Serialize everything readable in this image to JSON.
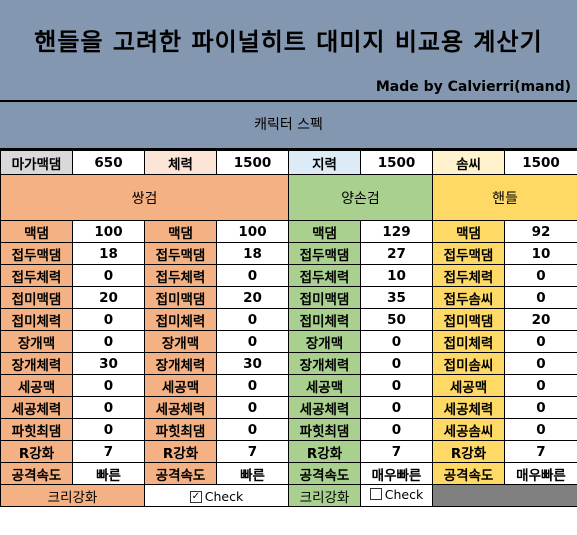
{
  "banner": {
    "title": "핸들을 고려한 파이널히트 대미지 비교용 계산기",
    "credit": "Made by Calvierri(mand)"
  },
  "spec_title": "캐릭터 스펙",
  "stats": [
    {
      "label": "마가맥댐",
      "value": "650"
    },
    {
      "label": "체력",
      "value": "1500"
    },
    {
      "label": "지력",
      "value": "1500"
    },
    {
      "label": "솜씨",
      "value": "1500"
    }
  ],
  "groups": {
    "dual": "쌍검",
    "two_hand": "양손검",
    "handle": "핸들"
  },
  "rows": [
    {
      "a_label": "맥댐",
      "a_val": "100",
      "b_label": "맥댐",
      "b_val": "100",
      "c_label": "맥댐",
      "c_val": "129",
      "d_label": "맥댐",
      "d_val": "92"
    },
    {
      "a_label": "접두맥댐",
      "a_val": "18",
      "b_label": "접두맥댐",
      "b_val": "18",
      "c_label": "접두맥댐",
      "c_val": "27",
      "d_label": "접두맥댐",
      "d_val": "10"
    },
    {
      "a_label": "접두체력",
      "a_val": "0",
      "b_label": "접두체력",
      "b_val": "0",
      "c_label": "접두체력",
      "c_val": "10",
      "d_label": "접두체력",
      "d_val": "0"
    },
    {
      "a_label": "접미맥댐",
      "a_val": "20",
      "b_label": "접미맥댐",
      "b_val": "20",
      "c_label": "접미맥댐",
      "c_val": "35",
      "d_label": "접두솜씨",
      "d_val": "0"
    },
    {
      "a_label": "접미체력",
      "a_val": "0",
      "b_label": "접미체력",
      "b_val": "0",
      "c_label": "접미체력",
      "c_val": "50",
      "d_label": "접미맥댐",
      "d_val": "20"
    },
    {
      "a_label": "장개맥",
      "a_val": "0",
      "b_label": "장개맥",
      "b_val": "0",
      "c_label": "장개맥",
      "c_val": "0",
      "d_label": "접미체력",
      "d_val": "0"
    },
    {
      "a_label": "장개체력",
      "a_val": "30",
      "b_label": "장개체력",
      "b_val": "30",
      "c_label": "장개체력",
      "c_val": "0",
      "d_label": "접미솜씨",
      "d_val": "0"
    },
    {
      "a_label": "세공맥",
      "a_val": "0",
      "b_label": "세공맥",
      "b_val": "0",
      "c_label": "세공맥",
      "c_val": "0",
      "d_label": "세공맥",
      "d_val": "0"
    },
    {
      "a_label": "세공체력",
      "a_val": "0",
      "b_label": "세공체력",
      "b_val": "0",
      "c_label": "세공체력",
      "c_val": "0",
      "d_label": "세공체력",
      "d_val": "0"
    },
    {
      "a_label": "파힛최댐",
      "a_val": "0",
      "b_label": "파힛최댐",
      "b_val": "0",
      "c_label": "파힛최댐",
      "c_val": "0",
      "d_label": "세공솜씨",
      "d_val": "0"
    },
    {
      "a_label": "R강화",
      "a_val": "7",
      "b_label": "R강화",
      "b_val": "7",
      "c_label": "R강화",
      "c_val": "7",
      "d_label": "R강화",
      "d_val": "7"
    },
    {
      "a_label": "공격속도",
      "a_val": "빠른",
      "b_label": "공격속도",
      "b_val": "빠른",
      "c_label": "공격속도",
      "c_val": "매우빠른",
      "d_label": "공격속도",
      "d_val": "매우빠른"
    }
  ],
  "crit": {
    "label_a": "크리강화",
    "check_a": "Check",
    "check_a_mark": "✓",
    "label_b": "크리강화",
    "check_b": "Check",
    "check_b_mark": ""
  }
}
